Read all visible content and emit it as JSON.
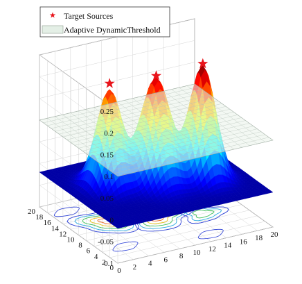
{
  "chart_data": {
    "type": "surface3d",
    "title": "",
    "xlabel": "",
    "ylabel": "",
    "zlabel": "",
    "xlim": [
      0,
      20
    ],
    "ylim": [
      0,
      20
    ],
    "zlim": [
      -0.1,
      0.25
    ],
    "x_ticks": [
      0,
      2,
      4,
      6,
      8,
      10,
      12,
      14,
      16,
      18,
      20
    ],
    "y_ticks": [
      0,
      2,
      4,
      6,
      8,
      10,
      12,
      14,
      16,
      18,
      20
    ],
    "z_ticks": [
      -0.1,
      -0.05,
      0,
      0.05,
      0.1,
      0.15,
      0.2,
      0.25
    ],
    "z_tick_labels": [
      "-0.1",
      "-0.05",
      "0",
      "0.05",
      "0.1",
      "0.15",
      "0.2",
      "0.25"
    ],
    "colormap": "jet",
    "grid": true,
    "legend": {
      "placement": "top-left",
      "entries": [
        {
          "label": "Target Sources",
          "marker": "star",
          "color": "#e8141b"
        },
        {
          "label": "Adaptive DynamicThreshold",
          "marker": "plane",
          "color": "#e4efe6"
        }
      ]
    },
    "threshold": 0.1,
    "peaks": [
      {
        "x": 5,
        "y": 12,
        "value": 0.2
      },
      {
        "x": 10,
        "y": 10,
        "value": 0.22
      },
      {
        "x": 15,
        "y": 8,
        "value": 0.24
      }
    ],
    "target_sources": [
      {
        "x": 5,
        "y": 12,
        "z": 0.215
      },
      {
        "x": 10,
        "y": 10,
        "z": 0.225
      },
      {
        "x": 15,
        "y": 8,
        "z": 0.245
      }
    ],
    "contour_floor_z": -0.1
  }
}
